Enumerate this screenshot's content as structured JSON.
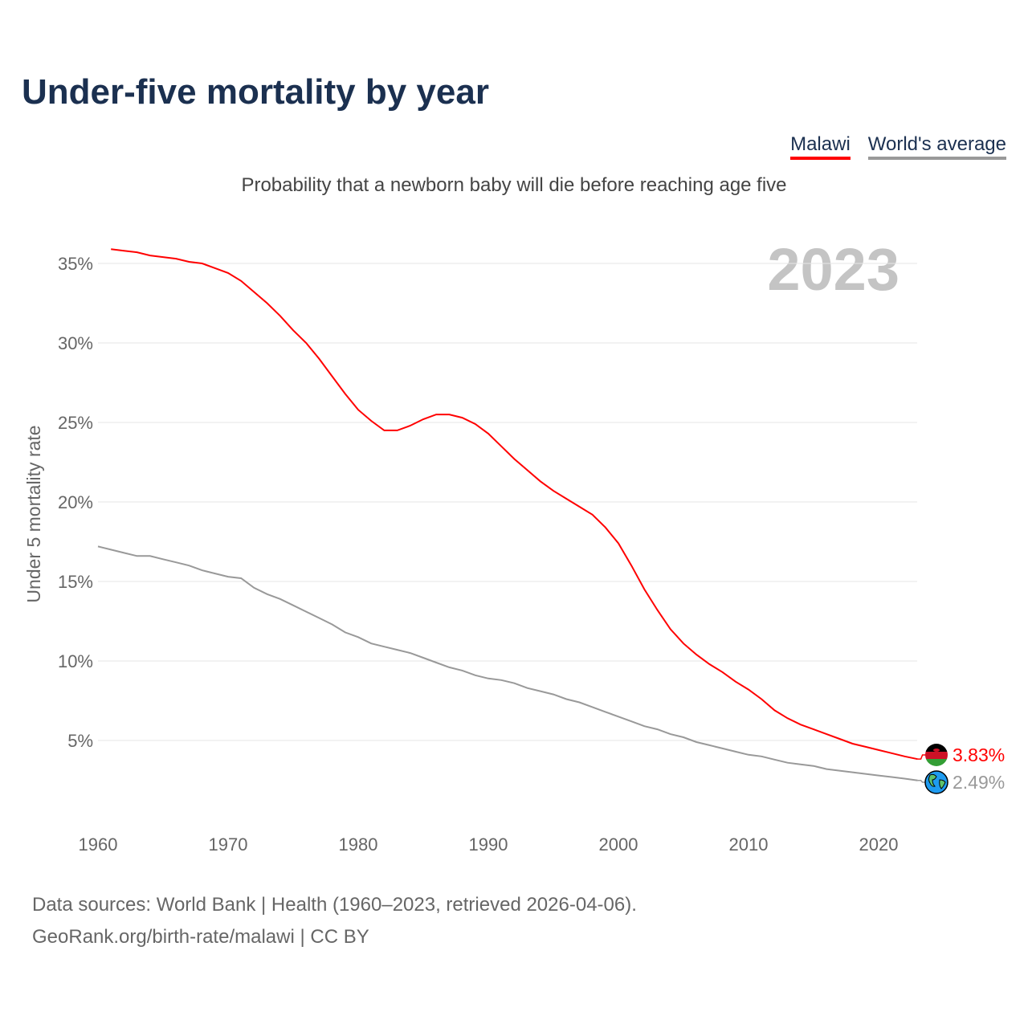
{
  "title": "Under-five mortality by year",
  "subtitle": "Probability that a newborn baby will die before reaching age five",
  "legend": {
    "malawi": "Malawi",
    "world": "World's average"
  },
  "year_label": "2023",
  "source_line1": "Data sources: World Bank | Health (1960–2023, retrieved 2026-04-06).",
  "source_line2": "GeoRank.org/birth-rate/malawi | CC BY",
  "end_labels": {
    "malawi": "3.83%",
    "world": "2.49%"
  },
  "colors": {
    "malawi": "#ff0000",
    "world": "#999999"
  },
  "chart_data": {
    "type": "line",
    "title": "Under-five mortality by year",
    "ylabel": "Under 5 mortality rate",
    "xlabel": "",
    "xlim": [
      1960,
      2023
    ],
    "ylim": [
      0,
      36
    ],
    "xticks": [
      1960,
      1970,
      1980,
      1990,
      2000,
      2010,
      2020
    ],
    "yticks": [
      5,
      10,
      15,
      20,
      25,
      30,
      35
    ],
    "ytick_labels": [
      "5%",
      "10%",
      "15%",
      "20%",
      "25%",
      "30%",
      "35%"
    ],
    "grid": true,
    "legend_position": "top-right",
    "series": [
      {
        "name": "Malawi",
        "start_year": 1961,
        "values": [
          35.9,
          35.8,
          35.7,
          35.5,
          35.4,
          35.3,
          35.1,
          35.0,
          34.7,
          34.4,
          33.9,
          33.2,
          32.5,
          31.7,
          30.8,
          30.0,
          29.0,
          27.9,
          26.8,
          25.8,
          25.1,
          24.5,
          24.5,
          24.8,
          25.2,
          25.5,
          25.5,
          25.3,
          24.9,
          24.3,
          23.5,
          22.7,
          22.0,
          21.3,
          20.7,
          20.2,
          19.7,
          19.2,
          18.4,
          17.4,
          16.0,
          14.5,
          13.2,
          12.0,
          11.1,
          10.4,
          9.8,
          9.3,
          8.7,
          8.2,
          7.6,
          6.9,
          6.4,
          6.0,
          5.7,
          5.4,
          5.1,
          4.8,
          4.6,
          4.4,
          4.2,
          4.0,
          3.83
        ]
      },
      {
        "name": "World's average",
        "start_year": 1960,
        "values": [
          17.2,
          17.0,
          16.8,
          16.6,
          16.6,
          16.4,
          16.2,
          16.0,
          15.7,
          15.5,
          15.3,
          15.2,
          14.6,
          14.2,
          13.9,
          13.5,
          13.1,
          12.7,
          12.3,
          11.8,
          11.5,
          11.1,
          10.9,
          10.7,
          10.5,
          10.2,
          9.9,
          9.6,
          9.4,
          9.1,
          8.9,
          8.8,
          8.6,
          8.3,
          8.1,
          7.9,
          7.6,
          7.4,
          7.1,
          6.8,
          6.5,
          6.2,
          5.9,
          5.7,
          5.4,
          5.2,
          4.9,
          4.7,
          4.5,
          4.3,
          4.1,
          4.0,
          3.8,
          3.6,
          3.5,
          3.4,
          3.2,
          3.1,
          3.0,
          2.9,
          2.8,
          2.7,
          2.6,
          2.49
        ]
      }
    ]
  }
}
